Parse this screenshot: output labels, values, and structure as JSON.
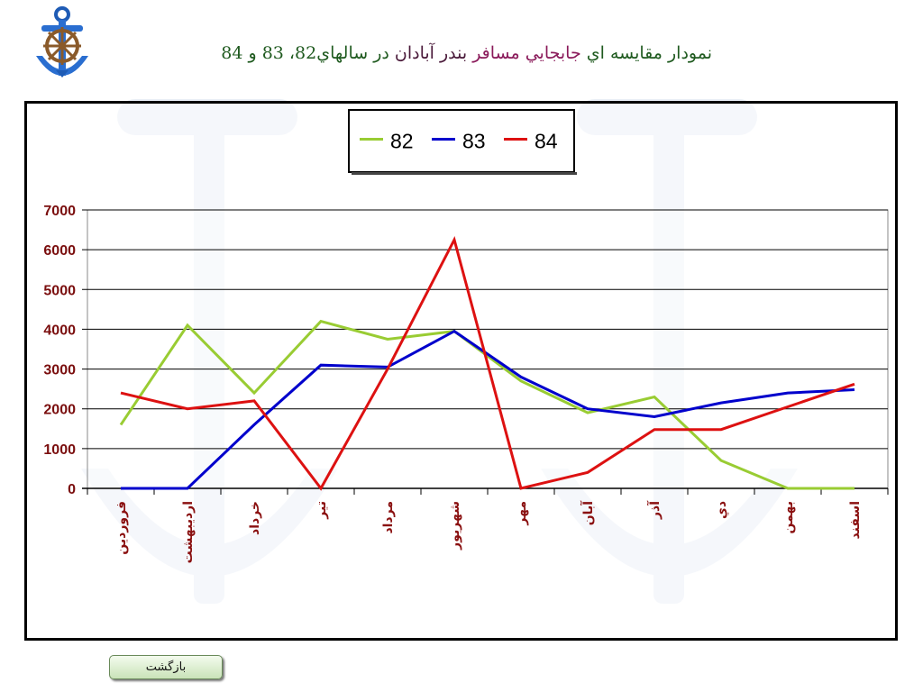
{
  "title": {
    "part1": "نمودار مقايسه اي",
    "part2": "جابجايي مسافر",
    "part3": "بندر آبادان",
    "part4": "در سالهاي82، 83 و 84"
  },
  "back_button_label": "بازگشت",
  "logo_icon": "anchor-ship-wheel-icon",
  "chart_data": {
    "type": "line",
    "title": "",
    "xlabel": "",
    "ylabel": "",
    "ylim": [
      0,
      7000
    ],
    "yticks": [
      0,
      1000,
      2000,
      3000,
      4000,
      5000,
      6000,
      7000
    ],
    "ytick_labels": [
      "0",
      "1000",
      "2000",
      "3000",
      "4000",
      "5000",
      "6000",
      "7000"
    ],
    "grid": true,
    "legend_position": "top-center",
    "categories": [
      "فروردين",
      "ارديبهشت",
      "خرداد",
      "تير",
      "مرداد",
      "شهريور",
      "مهر",
      "آبان",
      "آذر",
      "دي",
      "بهمن",
      "اسفند"
    ],
    "series": [
      {
        "name": "82",
        "color": "#99cc33",
        "values": [
          1600,
          4100,
          2400,
          4200,
          3750,
          3950,
          2700,
          1900,
          2300,
          700,
          0,
          0
        ]
      },
      {
        "name": "83",
        "color": "#0000cc",
        "values": [
          0,
          0,
          1600,
          3100,
          3050,
          3950,
          2800,
          2000,
          1800,
          2150,
          2400,
          2480
        ]
      },
      {
        "name": "84",
        "color": "#dd1111",
        "values": [
          2400,
          2000,
          2200,
          0,
          3000,
          6250,
          0,
          400,
          1480,
          1480,
          2050,
          2620
        ]
      }
    ]
  }
}
